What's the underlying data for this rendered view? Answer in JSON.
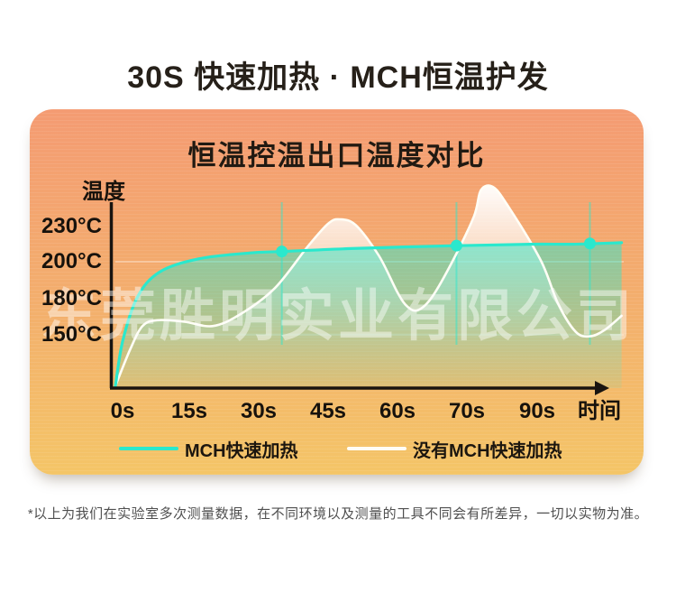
{
  "page": {
    "title": "30S 快速加热 · MCH恒温护发",
    "watermark": "东莞胜明实业有限公司",
    "disclaimer": "*以上为我们在实验室多次测量数据，在不同环境以及测量的工具不同会有所差异，一切以实物为准。"
  },
  "colors": {
    "card_gradient_top": "#f49b72",
    "card_gradient_mid": "#f3ae6d",
    "card_gradient_bottom": "#f4c567",
    "accent_teal": "#2ae8cd",
    "curve_white": "#fffef6",
    "axis_black": "#191410",
    "grid_white": "#ffffff"
  },
  "chart_data": {
    "type": "line",
    "title": "恒温控温出口温度对比",
    "ylabel": "温度",
    "xlabel": "时间",
    "x_tick_labels": [
      "0s",
      "15s",
      "30s",
      "45s",
      "60s",
      "70s",
      "90s"
    ],
    "y_tick_labels": [
      "230°C",
      "200°C",
      "180°C",
      "150°C"
    ],
    "y_tick_values": [
      230,
      200,
      180,
      150
    ],
    "x_unit": "seconds",
    "y_unit": "°C",
    "ylim": [
      113,
      241
    ],
    "grid_temps": [
      200,
      150
    ],
    "legend_position": "bottom",
    "series": [
      {
        "name": "MCH快速加热",
        "color": "#2ae8cd",
        "points": [
          [
            0,
            115
          ],
          [
            1.5,
            146
          ],
          [
            4.5,
            176
          ],
          [
            9,
            193
          ],
          [
            17,
            202
          ],
          [
            28,
            206
          ],
          [
            35,
            207
          ],
          [
            50,
            209
          ],
          [
            68.5,
            211
          ],
          [
            88,
            212
          ],
          [
            100,
            212
          ],
          [
            114,
            213
          ]
        ],
        "markers": [
          [
            35,
            207
          ],
          [
            68.5,
            211
          ],
          [
            105,
            212.5
          ]
        ]
      },
      {
        "name": "没有MCH快速加热",
        "color": "#fffef6",
        "points": [
          [
            0,
            115
          ],
          [
            3,
            140
          ],
          [
            5.5,
            156
          ],
          [
            8.5,
            160
          ],
          [
            14,
            159
          ],
          [
            20,
            156
          ],
          [
            26,
            164
          ],
          [
            33.5,
            182
          ],
          [
            40.5,
            210
          ],
          [
            45,
            226
          ],
          [
            47.5,
            229
          ],
          [
            51,
            225
          ],
          [
            56,
            204
          ],
          [
            60,
            179
          ],
          [
            61.5,
            169
          ],
          [
            63,
            167
          ],
          [
            65,
            176
          ],
          [
            68,
            201
          ],
          [
            72,
            231
          ],
          [
            74,
            249
          ],
          [
            77.5,
            251
          ],
          [
            82,
            237
          ],
          [
            91,
            201
          ],
          [
            96,
            171
          ],
          [
            101,
            152
          ],
          [
            105,
            149
          ],
          [
            109,
            153
          ],
          [
            114,
            163
          ]
        ],
        "markers": []
      }
    ]
  }
}
